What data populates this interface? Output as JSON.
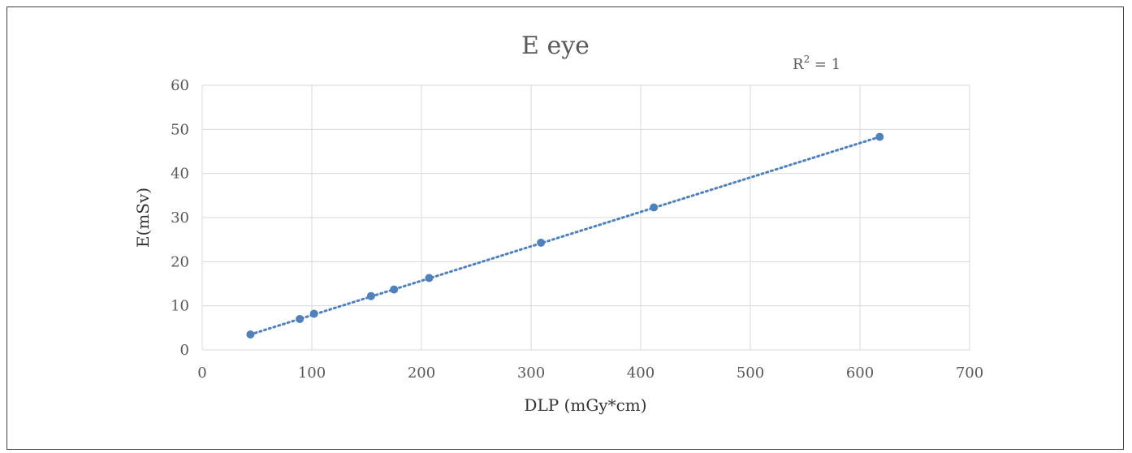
{
  "chart_data": {
    "type": "scatter",
    "title": "E eye",
    "xlabel": "DLP (mGy*cm)",
    "ylabel": "E(mSv)",
    "xlim": [
      0,
      700
    ],
    "ylim": [
      0,
      60
    ],
    "x_ticks": [
      "0",
      "100",
      "200",
      "300",
      "400",
      "500",
      "600",
      "700"
    ],
    "y_ticks": [
      "0",
      "10",
      "20",
      "30",
      "40",
      "50",
      "60"
    ],
    "grid": true,
    "series": [
      {
        "points": [
          {
            "x": 44,
            "y": 3.5
          },
          {
            "x": 89,
            "y": 7.0
          },
          {
            "x": 102,
            "y": 8.2
          },
          {
            "x": 154,
            "y": 12.2
          },
          {
            "x": 175,
            "y": 13.7
          },
          {
            "x": 207,
            "y": 16.3
          },
          {
            "x": 309,
            "y": 24.3
          },
          {
            "x": 412,
            "y": 32.3
          },
          {
            "x": 618,
            "y": 48.3
          }
        ],
        "color": "#4f81bd"
      }
    ],
    "trendline": {
      "type": "linear",
      "style": "dotted",
      "color": "#4f81bd",
      "from_x": 44,
      "from_y": 3.5,
      "to_x": 618,
      "to_y": 48.3,
      "r2_label_base": "R",
      "r2_label_sup": "2",
      "r2_label_rest": " = 1"
    }
  }
}
